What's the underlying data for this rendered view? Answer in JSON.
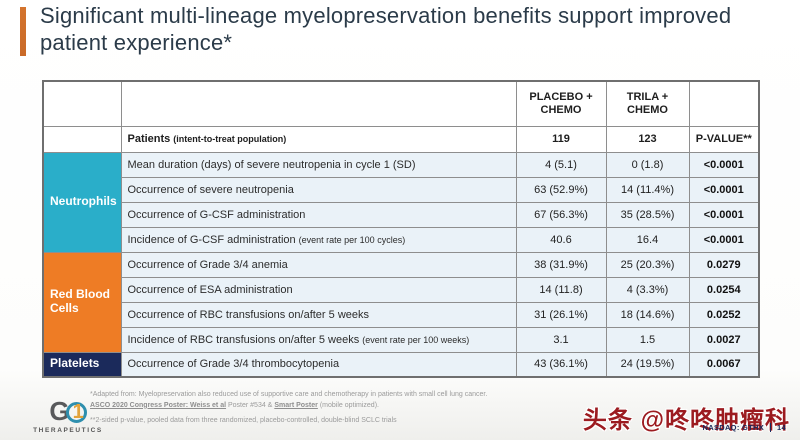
{
  "title": {
    "text": "Significant multi-lineage myelopreservation benefits support improved patient experience*"
  },
  "table": {
    "columns": {
      "placebo": "PLACEBO + CHEMO",
      "trila": "TRILA + CHEMO",
      "pvalue": "P-VALUE**"
    },
    "patients_row": {
      "label": "Patients",
      "note": "(intent-to-treat population)",
      "placebo": "119",
      "trila": "123"
    },
    "groups": [
      {
        "name": "Neutrophils",
        "color": "#2aaec9",
        "rows": [
          {
            "label": "Mean duration (days) of severe neutropenia in cycle 1 (SD)",
            "note": "",
            "placebo": "4 (5.1)",
            "trila": "0 (1.8)",
            "pvalue": "<0.0001"
          },
          {
            "label": "Occurrence of severe neutropenia",
            "note": "",
            "placebo": "63 (52.9%)",
            "trila": "14 (11.4%)",
            "pvalue": "<0.0001"
          },
          {
            "label": "Occurrence of G-CSF administration",
            "note": "",
            "placebo": "67 (56.3%)",
            "trila": "35 (28.5%)",
            "pvalue": "<0.0001"
          },
          {
            "label": "Incidence of G-CSF administration",
            "note": "(event rate per 100 cycles)",
            "placebo": "40.6",
            "trila": "16.4",
            "pvalue": "<0.0001"
          }
        ]
      },
      {
        "name": "Red Blood Cells",
        "color": "#ee7c25",
        "rows": [
          {
            "label": "Occurrence of Grade 3/4 anemia",
            "note": "",
            "placebo": "38 (31.9%)",
            "trila": "25 (20.3%)",
            "pvalue": "0.0279"
          },
          {
            "label": "Occurrence of ESA administration",
            "note": "",
            "placebo": "14 (11.8)",
            "trila": "4 (3.3%)",
            "pvalue": "0.0254"
          },
          {
            "label": "Occurrence of RBC transfusions on/after 5 weeks",
            "note": "",
            "placebo": "31 (26.1%)",
            "trila": "18 (14.6%)",
            "pvalue": "0.0252"
          },
          {
            "label": "Incidence of RBC transfusions on/after 5 weeks",
            "note": "(event rate per 100 weeks)",
            "placebo": "3.1",
            "trila": "1.5",
            "pvalue": "0.0027"
          }
        ]
      },
      {
        "name": "Platelets",
        "color": "#1b2a5b",
        "rows": [
          {
            "label": "Occurrence of Grade 3/4 thrombocytopenia",
            "note": "",
            "placebo": "43 (36.1%)",
            "trila": "24 (19.5%)",
            "pvalue": "0.0067"
          }
        ]
      }
    ]
  },
  "footnotes": {
    "line1": "*Adapted from: Myelopreservation also reduced use of supportive care and chemotherapy in patients with small cell lung cancer.",
    "link1": "ASCO 2020 Congress Poster: Weiss et al",
    "line2_mid": " Poster #534 & ",
    "link2": "Smart Poster",
    "line2_end": " (mobile optimized).",
    "line3": "**2-sided p-value, pooled data from three randomized, placebo-controlled, double-blind SCLC trials"
  },
  "logo": {
    "g": "G",
    "one": "1",
    "subtext": "THERAPEUTICS"
  },
  "watermark": {
    "text": "头条 @咚咚肿瘤科",
    "color": "#9c1b20"
  },
  "footer": {
    "nasdaq": "NASDAQ: GTHX",
    "page": "14"
  },
  "accent_colors": {
    "title_bar": "#d4742e"
  }
}
